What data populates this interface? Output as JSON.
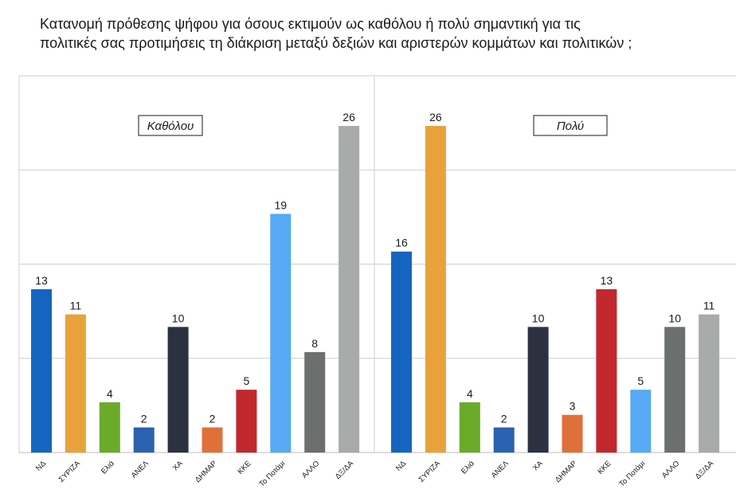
{
  "title": {
    "line1": "Κατανομή πρόθεσης ψήφου για όσους εκτιμούν ως καθόλου ή πολύ σημαντική για τις",
    "line2": "πολιτικές σας προτιμήσεις τη διάκριση μεταξύ δεξιών και αριστερών κομμάτων και πολιτικών ;"
  },
  "chart_data": [
    {
      "type": "bar",
      "panel_label": "Καθόλου",
      "categories": [
        "ΝΔ",
        "ΣΥΡΙΖΑ",
        "Ελιά",
        "ΑΝΕΛ",
        "ΧΑ",
        "ΔΗΜΑΡ",
        "ΚΚΕ",
        "Το Ποτάμι",
        "ΑΛΛΟ",
        "ΔΞ/ΔΑ"
      ],
      "values": [
        13,
        11,
        4,
        2,
        10,
        2,
        5,
        19,
        8,
        26
      ],
      "colors": [
        "#1565c0",
        "#e9a23b",
        "#6aab29",
        "#2a62b0",
        "#2b3140",
        "#e0703a",
        "#c0282d",
        "#56a9f5",
        "#6b6f6e",
        "#a9abab"
      ],
      "ylim": [
        0,
        30
      ],
      "grid": true
    },
    {
      "type": "bar",
      "panel_label": "Πολύ",
      "categories": [
        "ΝΔ",
        "ΣΥΡΙΖΑ",
        "Ελιά",
        "ΑΝΕΛ",
        "ΧΑ",
        "ΔΗΜΑΡ",
        "ΚΚΕ",
        "Το Ποτάμι",
        "ΑΛΛΟ",
        "ΔΞ/ΔΑ"
      ],
      "values": [
        16,
        26,
        4,
        2,
        10,
        3,
        13,
        5,
        10,
        11
      ],
      "colors": [
        "#1565c0",
        "#e9a23b",
        "#6aab29",
        "#2a62b0",
        "#2b3140",
        "#e0703a",
        "#c0282d",
        "#56a9f5",
        "#6b6f6e",
        "#a9abab"
      ],
      "ylim": [
        0,
        30
      ],
      "grid": true
    }
  ]
}
